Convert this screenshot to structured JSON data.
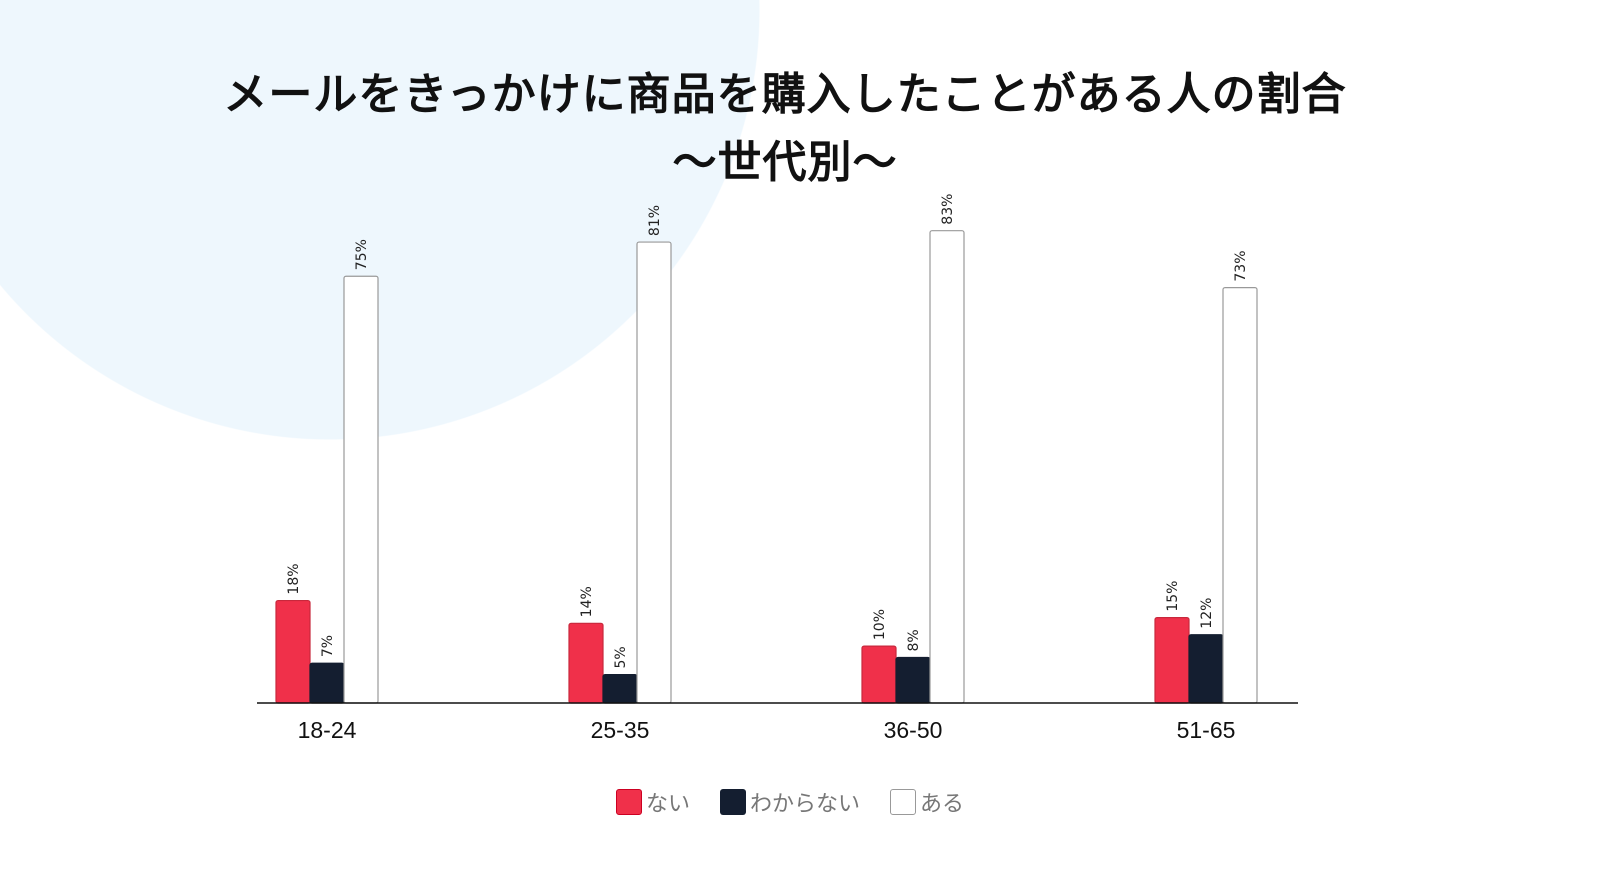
{
  "chart_data": {
    "type": "bar",
    "title": "メールをきっかけに商品を購入したことがある人の割合",
    "subtitle": "〜世代別〜",
    "categories": [
      "18-24",
      "25-35",
      "36-50",
      "51-65"
    ],
    "series": [
      {
        "name": "ない",
        "color": "#f0304a",
        "values": [
          18,
          14,
          10,
          15
        ],
        "labels": [
          "18%",
          "14%",
          "10%",
          "15%"
        ]
      },
      {
        "name": "わからない",
        "color": "#141e30",
        "values": [
          7,
          5,
          8,
          12
        ],
        "labels": [
          "7%",
          "5%",
          "8%",
          "12%"
        ]
      },
      {
        "name": "ある",
        "color": "#ffffff",
        "values": [
          75,
          81,
          83,
          73
        ],
        "labels": [
          "75%",
          "81%",
          "83%",
          "73%"
        ]
      }
    ],
    "xlabel": "",
    "ylabel": "",
    "ylim": [
      0,
      84
    ],
    "grid": false,
    "legend": "bottom"
  }
}
